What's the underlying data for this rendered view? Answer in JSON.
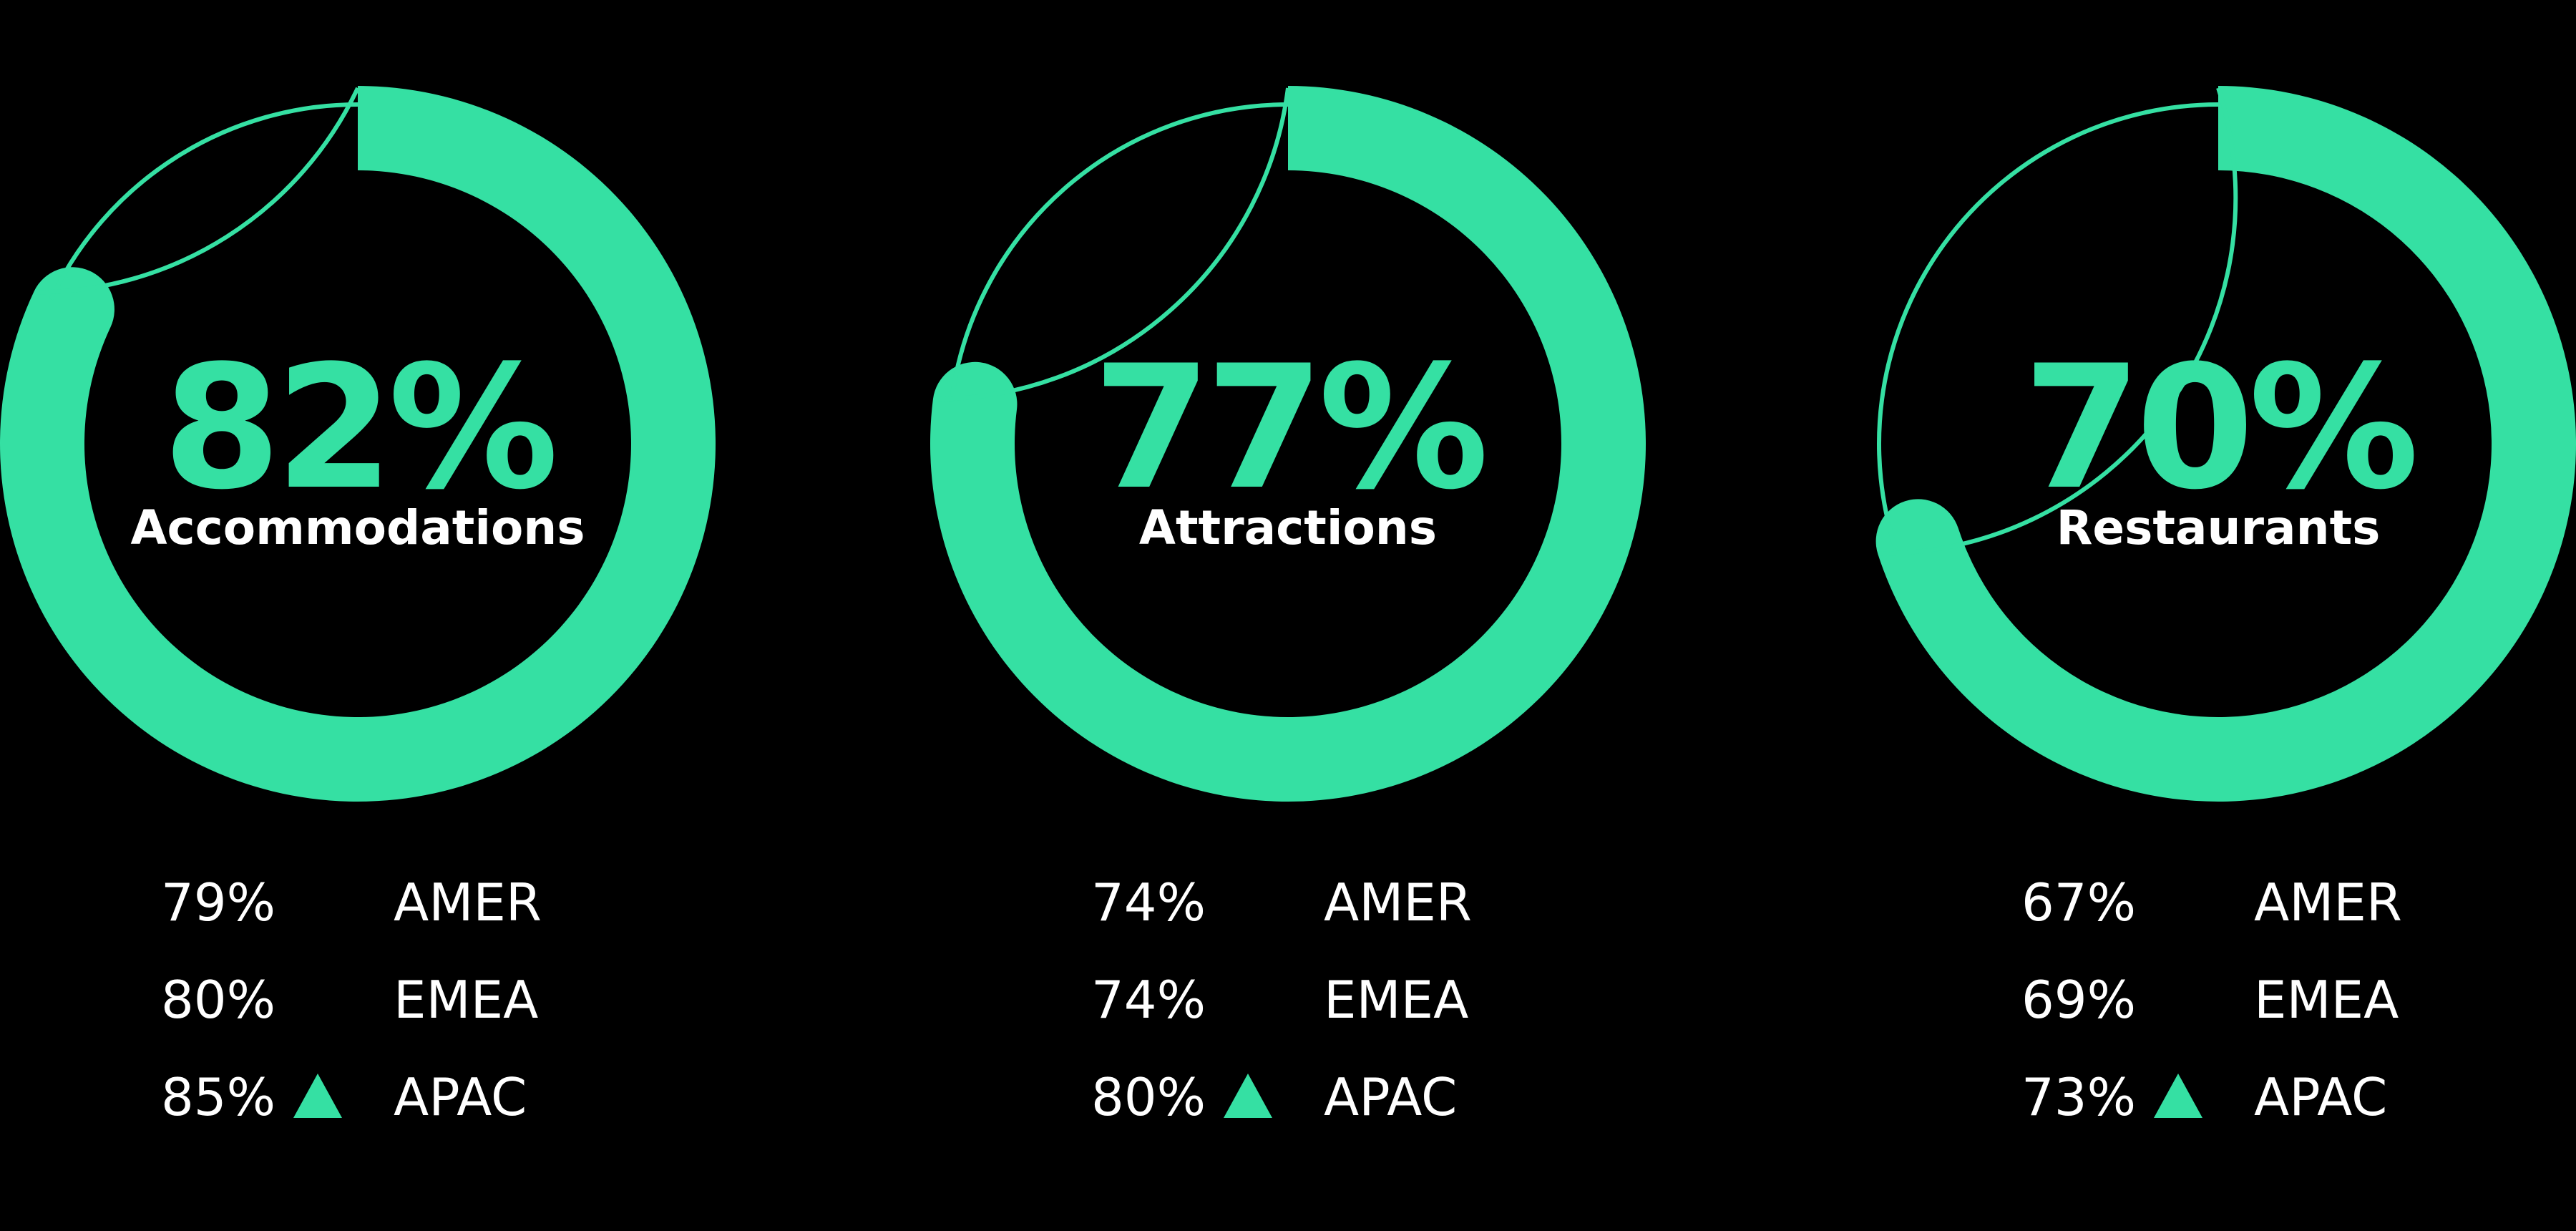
{
  "colors": {
    "background": "#000000",
    "accent": "#35E0A3",
    "text": "#FFFFFF"
  },
  "chart_data": [
    {
      "type": "donut",
      "label": "Accommodations",
      "value": 82,
      "value_text": "82%",
      "regions": [
        {
          "name": "AMER",
          "value": 79,
          "value_text": "79%",
          "trend_up": false
        },
        {
          "name": "EMEA",
          "value": 80,
          "value_text": "80%",
          "trend_up": false
        },
        {
          "name": "APAC",
          "value": 85,
          "value_text": "85%",
          "trend_up": true
        }
      ]
    },
    {
      "type": "donut",
      "label": "Attractions",
      "value": 77,
      "value_text": "77%",
      "regions": [
        {
          "name": "AMER",
          "value": 74,
          "value_text": "74%",
          "trend_up": false
        },
        {
          "name": "EMEA",
          "value": 74,
          "value_text": "74%",
          "trend_up": false
        },
        {
          "name": "APAC",
          "value": 80,
          "value_text": "80%",
          "trend_up": true
        }
      ]
    },
    {
      "type": "donut",
      "label": "Restaurants",
      "value": 70,
      "value_text": "70%",
      "regions": [
        {
          "name": "AMER",
          "value": 67,
          "value_text": "67%",
          "trend_up": false
        },
        {
          "name": "EMEA",
          "value": 69,
          "value_text": "69%",
          "trend_up": false
        },
        {
          "name": "APAC",
          "value": 73,
          "value_text": "73%",
          "trend_up": true
        }
      ]
    }
  ]
}
